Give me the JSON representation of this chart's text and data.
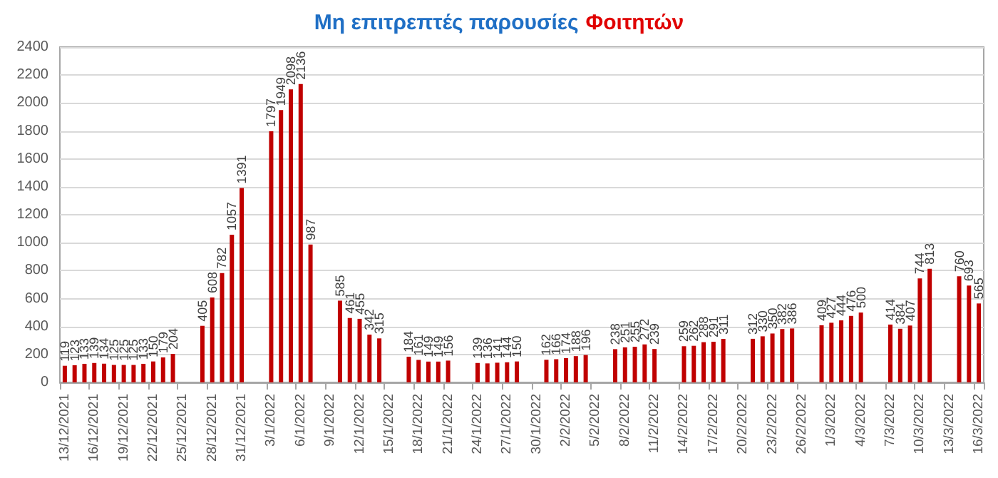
{
  "chart_data": {
    "type": "bar",
    "title": "Μη επιτρεπτές παρουσίες Φοιτητών",
    "categories": [
      "13/12/2021",
      null,
      null,
      "16/12/2021",
      null,
      null,
      "19/12/2021",
      null,
      null,
      "22/12/2021",
      null,
      null,
      "25/12/2021",
      null,
      null,
      "28/12/2021",
      null,
      null,
      "31/12/2021",
      null,
      null,
      "3/1/2022",
      null,
      null,
      "6/1/2022",
      null,
      null,
      "9/1/2022",
      null,
      null,
      "12/1/2022",
      null,
      null,
      "15/1/2022",
      null,
      null,
      "18/1/2022",
      null,
      null,
      "21/1/2022",
      null,
      null,
      "24/1/2022",
      null,
      null,
      "27/1/2022",
      null,
      null,
      "30/1/2022",
      null,
      null,
      "2/2/2022",
      null,
      null,
      "5/2/2022",
      null,
      null,
      "8/2/2022",
      null,
      null,
      "11/2/2022",
      null,
      null,
      "14/2/2022",
      null,
      null,
      "17/2/2022",
      null,
      null,
      "20/2/2022",
      null,
      null,
      "23/2/2022",
      null,
      null,
      "26/2/2022",
      null,
      null,
      "1/3/2022",
      null,
      null,
      "4/3/2022",
      null,
      null,
      "7/3/2022",
      null,
      null,
      "10/3/2022",
      null,
      null,
      "13/3/2022",
      null,
      null,
      "16/3/2022"
    ],
    "values": [
      119,
      123,
      133,
      139,
      134,
      125,
      125,
      125,
      133,
      150,
      179,
      204,
      null,
      null,
      405,
      608,
      782,
      1057,
      1391,
      null,
      null,
      1797,
      1949,
      2098,
      2136,
      987,
      null,
      null,
      585,
      461,
      455,
      342,
      315,
      null,
      null,
      184,
      161,
      149,
      149,
      156,
      null,
      null,
      139,
      136,
      141,
      144,
      150,
      null,
      null,
      162,
      166,
      174,
      188,
      196,
      null,
      null,
      238,
      251,
      255,
      272,
      239,
      null,
      null,
      259,
      262,
      288,
      291,
      311,
      null,
      null,
      312,
      330,
      350,
      382,
      386,
      null,
      null,
      409,
      427,
      444,
      476,
      500,
      null,
      null,
      414,
      384,
      407,
      744,
      813,
      null,
      null,
      760,
      693,
      565
    ],
    "color": "#c00000",
    "ylim": [
      0,
      2400
    ],
    "yticks": [
      0,
      200,
      400,
      600,
      800,
      1000,
      1200,
      1400,
      1600,
      1800,
      2000,
      2200,
      2400
    ],
    "grid": "y",
    "data_labels": true
  }
}
